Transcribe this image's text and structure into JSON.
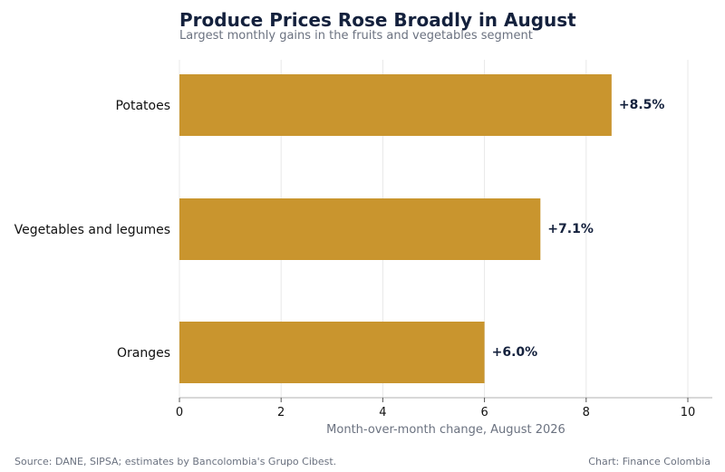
{
  "chart_data": {
    "type": "bar",
    "orientation": "horizontal",
    "title": "Produce Prices Rose Broadly in August",
    "subtitle": "Largest monthly gains in the fruits and vegetables segment",
    "categories": [
      "Potatoes",
      "Vegetables and legumes",
      "Oranges"
    ],
    "values": [
      8.5,
      7.1,
      6.0
    ],
    "value_labels": [
      "+8.5%",
      "+7.1%",
      "+6.0%"
    ],
    "xlabel": "Month-over-month change, August 2026",
    "ylabel": "",
    "xlim": [
      0,
      10.5
    ],
    "xticks": [
      0,
      2,
      4,
      6,
      8,
      10
    ],
    "xtick_labels": [
      "0",
      "2",
      "4",
      "6",
      "8",
      "10"
    ],
    "grid": "vertical",
    "legend": "none",
    "bar_color": "#c9952e",
    "source": "Source: DANE, SIPSA; estimates by Bancolombia's Grupo Cibest.",
    "credit": "Chart: Finance Colombia"
  }
}
